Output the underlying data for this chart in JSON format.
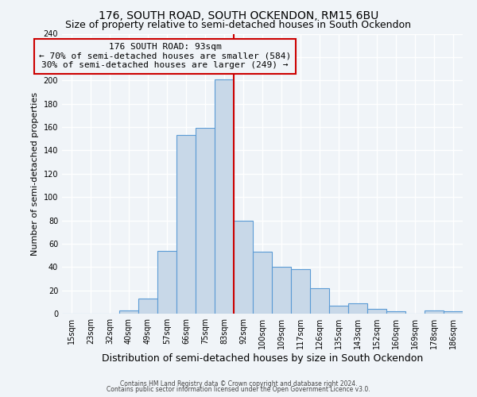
{
  "title": "176, SOUTH ROAD, SOUTH OCKENDON, RM15 6BU",
  "subtitle": "Size of property relative to semi-detached houses in South Ockendon",
  "xlabel": "Distribution of semi-detached houses by size in South Ockendon",
  "ylabel": "Number of semi-detached properties",
  "categories": [
    "15sqm",
    "23sqm",
    "32sqm",
    "40sqm",
    "49sqm",
    "57sqm",
    "66sqm",
    "75sqm",
    "83sqm",
    "92sqm",
    "100sqm",
    "109sqm",
    "117sqm",
    "126sqm",
    "135sqm",
    "143sqm",
    "152sqm",
    "160sqm",
    "169sqm",
    "178sqm",
    "186sqm"
  ],
  "values": [
    0,
    0,
    0,
    3,
    13,
    54,
    153,
    159,
    201,
    80,
    53,
    40,
    38,
    22,
    7,
    9,
    4,
    2,
    0,
    3,
    2
  ],
  "bar_color": "#c8d8e8",
  "bar_edge_color": "#5b9bd5",
  "vline_pos": 8.5,
  "vline_label": "176 SOUTH ROAD: 93sqm",
  "vline_color": "#cc0000",
  "annotation_line1": "← 70% of semi-detached houses are smaller (584)",
  "annotation_line2": "30% of semi-detached houses are larger (249) →",
  "box_edge_color": "#cc0000",
  "ylim": [
    0,
    240
  ],
  "yticks": [
    0,
    20,
    40,
    60,
    80,
    100,
    120,
    140,
    160,
    180,
    200,
    220,
    240
  ],
  "footer1": "Contains HM Land Registry data © Crown copyright and database right 2024.",
  "footer2": "Contains public sector information licensed under the Open Government Licence v3.0.",
  "background_color": "#f0f4f8",
  "grid_color": "#ffffff",
  "title_fontsize": 10,
  "subtitle_fontsize": 9,
  "annotation_fontsize": 8,
  "tick_fontsize": 7,
  "ylabel_fontsize": 8,
  "xlabel_fontsize": 9,
  "footer_fontsize": 5.5
}
